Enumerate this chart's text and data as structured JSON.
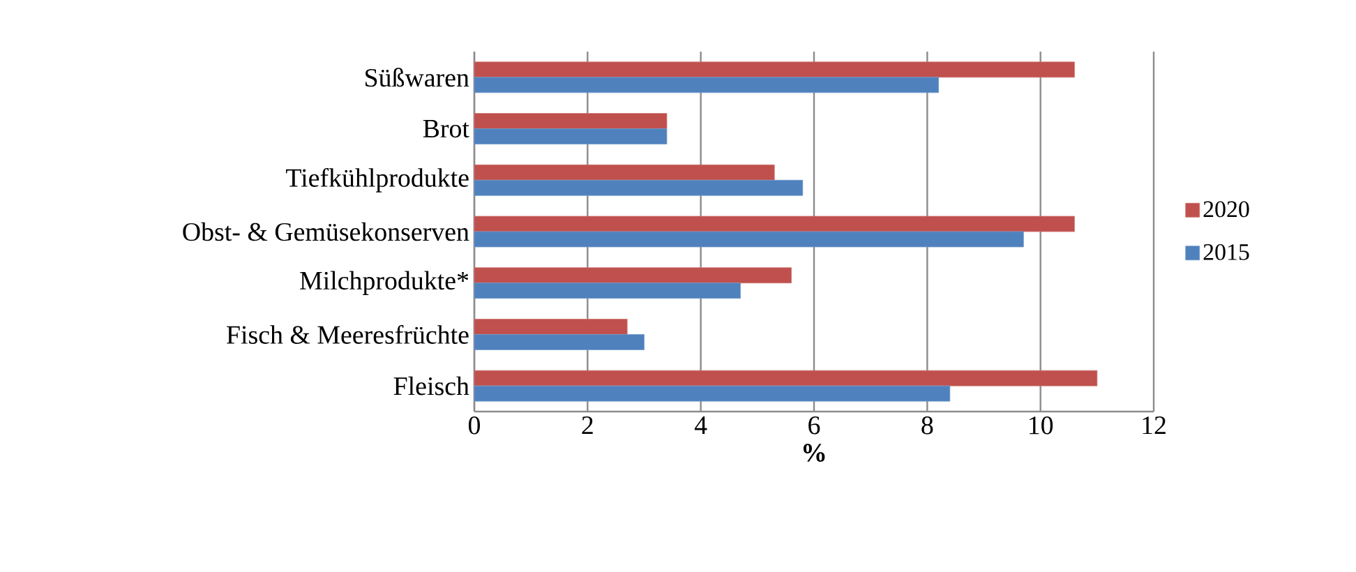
{
  "chart_data": {
    "type": "bar",
    "orientation": "horizontal",
    "categories": [
      "Süßwaren",
      "Brot",
      "Tiefkühlprodukte",
      "Obst- & Gemüsekonserven",
      "Milchprodukte*",
      "Fisch & Meeresfrüchte",
      "Fleisch"
    ],
    "series": [
      {
        "name": "2020",
        "color": "#c0504d",
        "values": [
          10.6,
          3.4,
          5.3,
          10.6,
          5.6,
          2.7,
          11.0
        ]
      },
      {
        "name": "2015",
        "color": "#4f81bd",
        "values": [
          8.2,
          3.4,
          5.8,
          9.7,
          4.7,
          3.0,
          8.4
        ]
      }
    ],
    "xlim": [
      0,
      12
    ],
    "xticks": [
      0,
      2,
      4,
      6,
      8,
      10,
      12
    ],
    "xlabel": "%",
    "grid": "x",
    "legend": "right"
  }
}
